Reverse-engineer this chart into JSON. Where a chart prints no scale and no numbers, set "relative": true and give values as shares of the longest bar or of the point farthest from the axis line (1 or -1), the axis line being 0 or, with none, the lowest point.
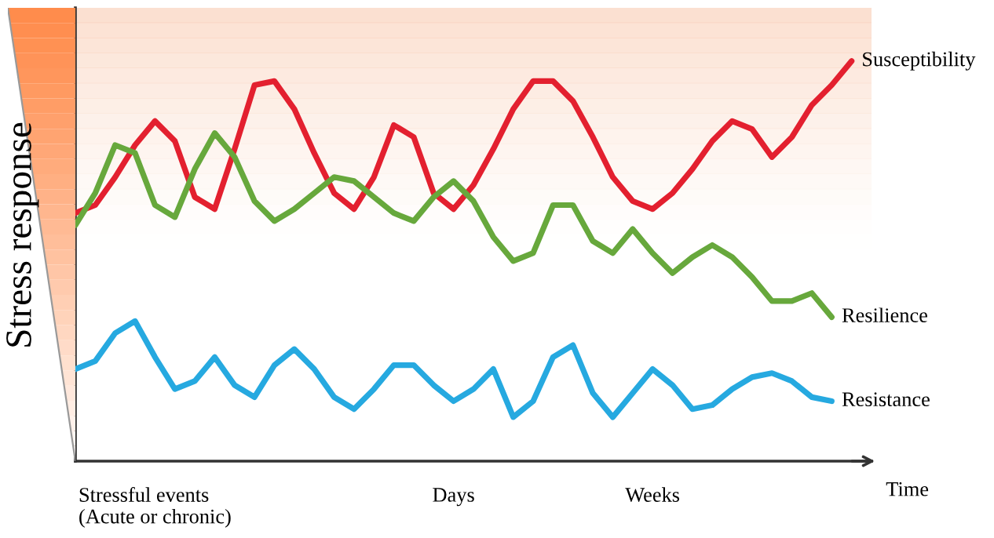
{
  "chart_data": {
    "type": "line",
    "relative": true,
    "ylabel": "Stress response",
    "xlabel": "Time",
    "categories": [
      null,
      null,
      null,
      null,
      "Stressful events\n(Acute or chronic)",
      null,
      null,
      null,
      null,
      null,
      null,
      null,
      null,
      null,
      null,
      null,
      null,
      null,
      null,
      "Days",
      null,
      null,
      null,
      null,
      null,
      null,
      null,
      null,
      null,
      "Weeks",
      null,
      null,
      null,
      null,
      null,
      null,
      null,
      null,
      null,
      null,
      null
    ],
    "marker": "none",
    "line_style": "solid",
    "series": [
      {
        "name": "Susceptibility",
        "color": "#e3202f",
        "values": [
          0.62,
          0.64,
          0.71,
          0.79,
          0.85,
          0.8,
          0.66,
          0.63,
          0.78,
          0.94,
          0.95,
          0.88,
          0.77,
          0.67,
          0.63,
          0.71,
          0.84,
          0.81,
          0.67,
          0.63,
          0.69,
          0.78,
          0.88,
          0.95,
          0.95,
          0.9,
          0.81,
          0.71,
          0.65,
          0.63,
          0.67,
          0.73,
          0.8,
          0.85,
          0.83,
          0.76,
          0.81,
          0.89,
          0.94,
          1.0,
          null
        ]
      },
      {
        "name": "Resilience",
        "color": "#67a83c",
        "values": [
          0.59,
          0.67,
          0.79,
          0.77,
          0.64,
          0.61,
          0.73,
          0.82,
          0.76,
          0.65,
          0.6,
          0.63,
          0.67,
          0.71,
          0.7,
          0.66,
          0.62,
          0.6,
          0.66,
          0.7,
          0.65,
          0.56,
          0.5,
          0.52,
          0.64,
          0.64,
          0.55,
          0.52,
          0.58,
          0.52,
          0.47,
          0.51,
          0.54,
          0.51,
          0.46,
          0.4,
          0.4,
          0.42,
          0.36,
          null,
          null
        ]
      },
      {
        "name": "Resistance",
        "color": "#26a9e0",
        "values": [
          0.23,
          0.25,
          0.32,
          0.35,
          0.26,
          0.18,
          0.2,
          0.26,
          0.19,
          0.16,
          0.24,
          0.28,
          0.23,
          0.16,
          0.13,
          0.18,
          0.24,
          0.24,
          0.19,
          0.15,
          0.18,
          0.23,
          0.11,
          0.15,
          0.26,
          0.29,
          0.17,
          0.11,
          0.17,
          0.23,
          0.19,
          0.13,
          0.14,
          0.18,
          0.21,
          0.22,
          0.2,
          0.16,
          0.15,
          null,
          null
        ]
      }
    ]
  }
}
